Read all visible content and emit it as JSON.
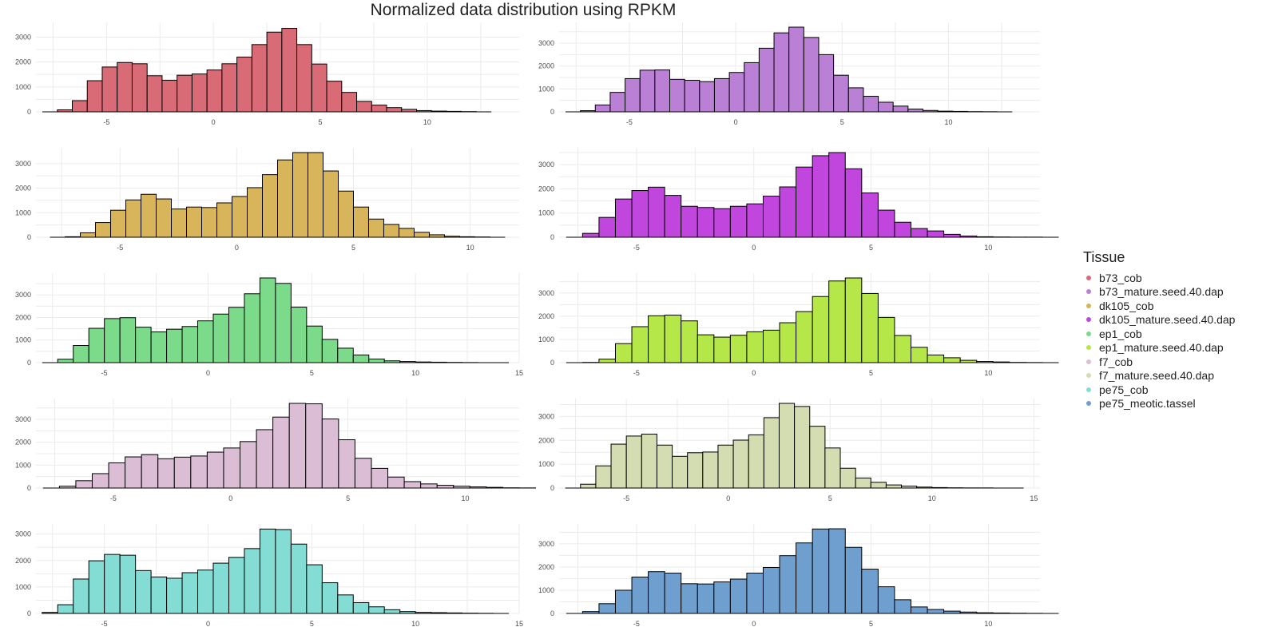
{
  "chart_data": {
    "title": "Normalized data distribution using RPKM",
    "type": "histogram",
    "legend": {
      "title": "Tissue",
      "position": "right",
      "items": [
        {
          "label": "b73_cob",
          "color": "#d96b77"
        },
        {
          "label": "b73_mature.seed.40.dap",
          "color": "#ba80d6"
        },
        {
          "label": "dk105_cob",
          "color": "#d8b45a"
        },
        {
          "label": "dk105_mature.seed.40.dap",
          "color": "#c146dd"
        },
        {
          "label": "ep1_cob",
          "color": "#7bdb8a"
        },
        {
          "label": "ep1_mature.seed.40.dap",
          "color": "#b5e749"
        },
        {
          "label": "f7_cob",
          "color": "#dbbed6"
        },
        {
          "label": "f7_mature.seed.40.dap",
          "color": "#d4dcb2"
        },
        {
          "label": "pe75_cob",
          "color": "#83ddd4"
        },
        {
          "label": "pe75_meotic.tassel",
          "color": "#6f9fcf"
        }
      ]
    },
    "panels": [
      {
        "tissue": "b73_cob",
        "color": "#d96b77",
        "xlim": [
          -8.3,
          14.3
        ],
        "ylim": [
          0,
          3400
        ],
        "xticks": [
          -5,
          0,
          5,
          10
        ],
        "yticks": [
          0,
          1000,
          2000,
          3000
        ],
        "bins": {
          "start": -8,
          "width": 0.7,
          "counts": [
            0,
            80,
            450,
            1250,
            1800,
            1980,
            1930,
            1450,
            1270,
            1470,
            1520,
            1680,
            1930,
            2200,
            2700,
            3200,
            3350,
            2700,
            1920,
            1230,
            780,
            420,
            270,
            170,
            100,
            50,
            30,
            20,
            10,
            0
          ]
        }
      },
      {
        "tissue": "b73_mature.seed.40.dap",
        "color": "#ba80d6",
        "xlim": [
          -8.3,
          14.3
        ],
        "ylim": [
          0,
          3700
        ],
        "xticks": [
          -5,
          0,
          5,
          10
        ],
        "yticks": [
          0,
          1000,
          2000,
          3000
        ],
        "bins": {
          "start": -8,
          "width": 0.7,
          "counts": [
            0,
            50,
            300,
            850,
            1450,
            1820,
            1830,
            1420,
            1380,
            1320,
            1450,
            1720,
            2150,
            2780,
            3450,
            3700,
            3250,
            2500,
            1600,
            1050,
            680,
            420,
            250,
            120,
            60,
            30,
            20,
            10,
            5,
            0
          ]
        }
      },
      {
        "tissue": "dk105_cob",
        "color": "#d8b45a",
        "xlim": [
          -8.6,
          12.1
        ],
        "ylim": [
          0,
          3450
        ],
        "xticks": [
          -5,
          0,
          5,
          10
        ],
        "yticks": [
          0,
          1000,
          2000,
          3000
        ],
        "bins": {
          "start": -8,
          "width": 0.65,
          "counts": [
            0,
            20,
            180,
            600,
            1100,
            1520,
            1750,
            1560,
            1150,
            1230,
            1210,
            1400,
            1660,
            2020,
            2550,
            3150,
            3450,
            3450,
            2700,
            1880,
            1230,
            740,
            520,
            360,
            200,
            100,
            40,
            20,
            10,
            0
          ]
        }
      },
      {
        "tissue": "dk105_mature.seed.40.dap",
        "color": "#c146dd",
        "xlim": [
          -8.3,
          12.2
        ],
        "ylim": [
          0,
          3500
        ],
        "xticks": [
          -5,
          0,
          5,
          10
        ],
        "yticks": [
          0,
          1000,
          2000,
          3000
        ],
        "bins": {
          "start": -8,
          "width": 0.7,
          "counts": [
            0,
            160,
            820,
            1580,
            1930,
            2070,
            1730,
            1280,
            1230,
            1180,
            1280,
            1380,
            1700,
            2080,
            2900,
            3370,
            3500,
            2830,
            1830,
            1120,
            620,
            360,
            260,
            120,
            50,
            20,
            10,
            5,
            5,
            0
          ]
        }
      },
      {
        "tissue": "ep1_cob",
        "color": "#7bdb8a",
        "xlim": [
          -8.3,
          15.0
        ],
        "ylim": [
          0,
          3750
        ],
        "xticks": [
          -5,
          0,
          5,
          10,
          15
        ],
        "yticks": [
          0,
          1000,
          2000,
          3000
        ],
        "bins": {
          "start": -8,
          "width": 0.75,
          "counts": [
            0,
            150,
            760,
            1520,
            1950,
            1990,
            1570,
            1360,
            1480,
            1600,
            1850,
            2150,
            2450,
            3050,
            3750,
            3510,
            2460,
            1620,
            1030,
            640,
            340,
            160,
            80,
            50,
            30,
            20,
            10,
            5,
            0,
            0
          ]
        }
      },
      {
        "tissue": "ep1_mature.seed.40.dap",
        "color": "#b5e749",
        "xlim": [
          -8.3,
          12.2
        ],
        "ylim": [
          0,
          3650
        ],
        "xticks": [
          -5,
          0,
          5,
          10
        ],
        "yticks": [
          0,
          1000,
          2000,
          3000
        ],
        "bins": {
          "start": -8,
          "width": 0.7,
          "counts": [
            0,
            10,
            150,
            820,
            1550,
            2020,
            2050,
            1800,
            1200,
            1100,
            1180,
            1330,
            1400,
            1720,
            2200,
            2850,
            3520,
            3650,
            2980,
            1950,
            1170,
            660,
            330,
            210,
            100,
            50,
            30,
            10,
            5,
            0
          ]
        }
      },
      {
        "tissue": "f7_cob",
        "color": "#dbbed6",
        "xlim": [
          -8.3,
          12.3
        ],
        "ylim": [
          0,
          3700
        ],
        "xticks": [
          -5,
          0,
          5,
          10
        ],
        "yticks": [
          0,
          1000,
          2000,
          3000
        ],
        "bins": {
          "start": -8,
          "width": 0.7,
          "counts": [
            0,
            80,
            320,
            630,
            1100,
            1360,
            1460,
            1280,
            1350,
            1400,
            1570,
            1750,
            2030,
            2550,
            3100,
            3700,
            3680,
            3020,
            2110,
            1300,
            860,
            480,
            280,
            180,
            120,
            80,
            50,
            30,
            10,
            5
          ]
        }
      },
      {
        "tissue": "f7_mature.seed.40.dap",
        "color": "#d4dcb2",
        "xlim": [
          -8.3,
          15.3
        ],
        "ylim": [
          0,
          3550
        ],
        "xticks": [
          -5,
          0,
          5,
          10,
          15
        ],
        "yticks": [
          0,
          1000,
          2000,
          3000
        ],
        "bins": {
          "start": -8,
          "width": 0.75,
          "counts": [
            0,
            160,
            930,
            1840,
            2180,
            2260,
            1800,
            1330,
            1480,
            1510,
            1800,
            2010,
            2230,
            2950,
            3550,
            3420,
            2590,
            1680,
            830,
            420,
            240,
            130,
            80,
            40,
            20,
            10,
            5,
            5,
            0,
            0
          ]
        }
      },
      {
        "tissue": "pe75_cob",
        "color": "#83ddd4",
        "xlim": [
          -8.3,
          15.0
        ],
        "ylim": [
          0,
          3200
        ],
        "xticks": [
          -5,
          0,
          5,
          10,
          15
        ],
        "yticks": [
          0,
          1000,
          2000,
          3000
        ],
        "bins": {
          "start": -8,
          "width": 0.75,
          "counts": [
            40,
            330,
            1300,
            1990,
            2230,
            2200,
            1620,
            1380,
            1330,
            1540,
            1640,
            1900,
            2120,
            2450,
            3190,
            3170,
            2620,
            1840,
            1160,
            700,
            410,
            250,
            140,
            70,
            40,
            30,
            20,
            10,
            5,
            0
          ]
        }
      },
      {
        "tissue": "pe75_meotic.tassel",
        "color": "#6f9fcf",
        "xlim": [
          -8.3,
          12.2
        ],
        "ylim": [
          0,
          3650
        ],
        "xticks": [
          -5,
          0,
          5,
          10
        ],
        "yticks": [
          0,
          1000,
          2000,
          3000
        ],
        "bins": {
          "start": -8,
          "width": 0.7,
          "counts": [
            0,
            80,
            420,
            1000,
            1570,
            1800,
            1740,
            1280,
            1270,
            1360,
            1480,
            1740,
            1980,
            2490,
            3040,
            3640,
            3650,
            2850,
            1910,
            1150,
            590,
            280,
            170,
            100,
            60,
            30,
            20,
            10,
            5,
            0
          ]
        }
      }
    ]
  }
}
